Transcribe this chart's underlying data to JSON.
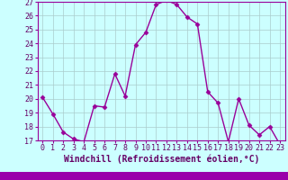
{
  "x": [
    0,
    1,
    2,
    3,
    4,
    5,
    6,
    7,
    8,
    9,
    10,
    11,
    12,
    13,
    14,
    15,
    16,
    17,
    18,
    19,
    20,
    21,
    22,
    23
  ],
  "y": [
    20.1,
    18.9,
    17.6,
    17.1,
    16.9,
    19.5,
    19.4,
    21.8,
    20.2,
    23.9,
    24.8,
    26.8,
    27.1,
    26.8,
    25.9,
    25.4,
    20.5,
    19.7,
    16.9,
    20.0,
    18.1,
    17.4,
    18.0,
    16.7
  ],
  "line_color": "#990099",
  "marker": "D",
  "marker_size": 2.5,
  "linewidth": 1.0,
  "bg_color": "#ccffff",
  "grid_color": "#aacccc",
  "xlabel": "Windchill (Refroidissement éolien,°C)",
  "xlabel_fontsize": 7,
  "ylim": [
    17,
    27
  ],
  "yticks": [
    17,
    18,
    19,
    20,
    21,
    22,
    23,
    24,
    25,
    26,
    27
  ],
  "xticks": [
    0,
    1,
    2,
    3,
    4,
    5,
    6,
    7,
    8,
    9,
    10,
    11,
    12,
    13,
    14,
    15,
    16,
    17,
    18,
    19,
    20,
    21,
    22,
    23
  ],
  "tick_fontsize": 6,
  "axis_line_color": "#990099",
  "bottom_bar_color": "#9900aa"
}
